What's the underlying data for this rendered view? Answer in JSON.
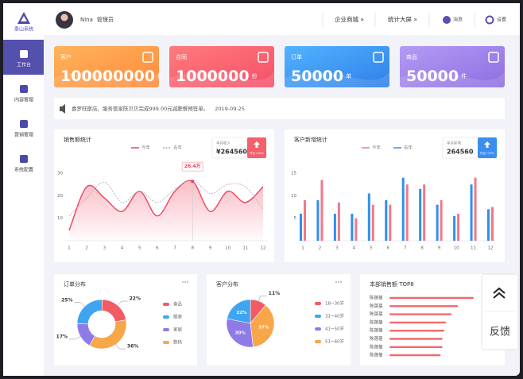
{
  "sidebar": {
    "logo": "泰山系统",
    "nav": [
      "工作台",
      "内容管理",
      "营销管理",
      "系统配置"
    ]
  },
  "header": {
    "user": "Nina",
    "role": "管理员",
    "links": [
      "企业商城 »",
      "统计大屏 »"
    ],
    "icons": [
      "消息",
      "设置"
    ]
  },
  "cards": [
    {
      "label": "客户",
      "value": 100000000,
      "unit": "位",
      "colors": [
        "#ffb45a",
        "#ff8a3d"
      ]
    },
    {
      "label": "合同",
      "value": 1000000,
      "unit": "份",
      "colors": [
        "#ff7b7b",
        "#f4506a"
      ]
    },
    {
      "label": "订单",
      "value": 50000,
      "unit": "单",
      "colors": [
        "#52b4ff",
        "#2f7fe8"
      ]
    },
    {
      "label": "商品",
      "value": 50000,
      "unit": "件",
      "colors": [
        "#b49bf5",
        "#8e6ee0"
      ]
    }
  ],
  "notice": {
    "text": "喜罗旺斯店，服务管家陈贝贝完成999.00元减肥餐预签单。",
    "date": "2019-09-25"
  },
  "chart_data": [
    {
      "type": "line",
      "title": "销售额统计",
      "categories": [
        1,
        2,
        3,
        4,
        5,
        6,
        7,
        8,
        9,
        10,
        11,
        12
      ],
      "ylim": [
        0,
        30
      ],
      "yticks": [
        10,
        20,
        30
      ],
      "grid": false,
      "summary": {
        "label": "本月收入",
        "value": "¥264560",
        "badge": "环比+20%",
        "color": "#f4606c"
      },
      "series": [
        {
          "name": "今年",
          "color": "#f0405a",
          "values": [
            4.6,
            24,
            19,
            13,
            22,
            11,
            22,
            26.4,
            13,
            22,
            17,
            24
          ],
          "value_labels": [
            null,
            null,
            null,
            null,
            null,
            null,
            null,
            "26.4万",
            null,
            null,
            null,
            null
          ]
        },
        {
          "name": "去年",
          "color": "#b0b0b8",
          "dashed": true,
          "values": [
            11,
            19,
            26,
            17,
            22,
            17,
            23,
            27,
            21,
            25,
            24,
            14
          ]
        }
      ]
    },
    {
      "type": "bar",
      "title": "客户新增统计",
      "categories": [
        1,
        2,
        3,
        4,
        5,
        6,
        7,
        8,
        9,
        10,
        11,
        12
      ],
      "ylim": [
        0,
        15
      ],
      "yticks": [
        5,
        10,
        15
      ],
      "grid": false,
      "summary": {
        "label": "本月新增",
        "value": 264560,
        "badge": "环比+20%",
        "color": "#3a8ef0"
      },
      "series": [
        {
          "name": "今年",
          "color": "#f2788a",
          "values": [
            9,
            13.5,
            8.5,
            5,
            8,
            8,
            12.5,
            12.5,
            9,
            6,
            14,
            7.5
          ]
        },
        {
          "name": "去年",
          "color": "#2f8ff0",
          "values": [
            6,
            9,
            6,
            6,
            10.5,
            9,
            14,
            11.5,
            8,
            5.5,
            12.5,
            7
          ]
        }
      ]
    },
    {
      "type": "donut",
      "title": "订单分布",
      "categories": [
        "食品",
        "服装",
        "家居",
        "数码"
      ],
      "values": [
        22,
        25,
        17,
        36
      ],
      "value_labels": [
        "22%",
        "25%",
        "17%",
        "36%"
      ],
      "colors": [
        "#f25a64",
        "#3fa4f2",
        "#8f7be8",
        "#f7a64a"
      ]
    },
    {
      "type": "pie",
      "title": "客户分布",
      "categories": [
        "18~30岁",
        "31~40岁",
        "41~50岁",
        "51~60岁"
      ],
      "values": [
        11,
        22,
        30,
        37
      ],
      "value_labels": [
        "11%",
        "22%",
        "30%",
        "37%"
      ],
      "colors": [
        "#f25a64",
        "#3fa4f2",
        "#8f7be8",
        "#f7a64a"
      ]
    },
    {
      "type": "hbar",
      "title": "本部销售额 TOP8",
      "categories": [
        "陈蓓蓓",
        "陈蓓蓓",
        "陈蓓蓓",
        "陈蓓蓓",
        "陈蓓蓓",
        "陈蓓蓓",
        "陈蓓蓓",
        "陈蓓蓓"
      ],
      "values": [
        92,
        75,
        68,
        62,
        60,
        58,
        58,
        56
      ],
      "xlim": [
        0,
        100
      ],
      "color": "#f2686e"
    }
  ],
  "feedback": "反馈"
}
